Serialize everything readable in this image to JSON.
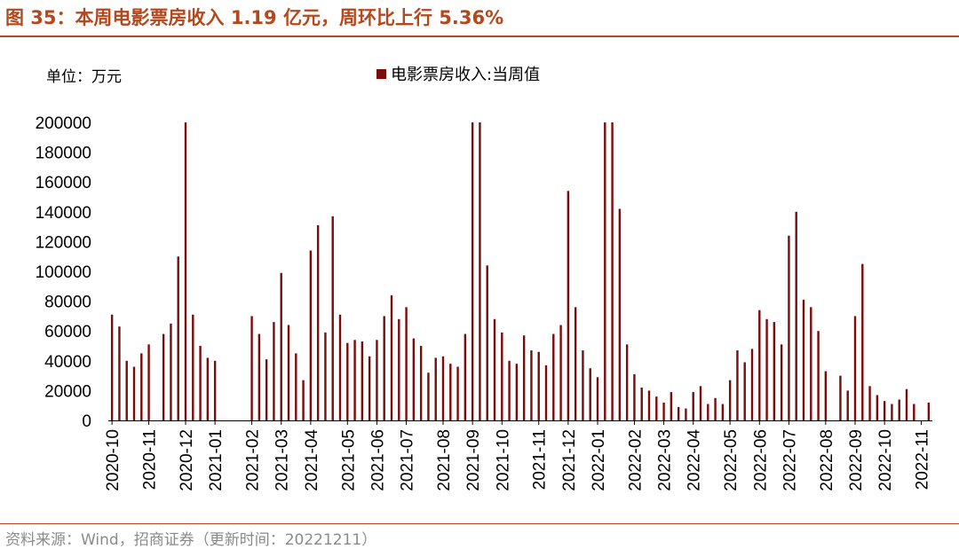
{
  "header": {
    "title": "图 35：本周电影票房收入 1.19 亿元，周环比上行 5.36%"
  },
  "footer": {
    "source": "资料来源：Wind，招商证券（更新时间：20221211）"
  },
  "chart_data": {
    "type": "bar",
    "unit_label": "单位：万元",
    "series": [
      {
        "name": "电影票房收入:当周值",
        "color": "#7b0c0c",
        "values": [
          71000,
          63000,
          40000,
          36000,
          45000,
          51000,
          null,
          58000,
          65000,
          110000,
          200000,
          71000,
          50000,
          42000,
          40000,
          null,
          null,
          null,
          null,
          70000,
          58000,
          41000,
          66000,
          99000,
          64000,
          45000,
          27000,
          114000,
          131000,
          59000,
          137000,
          71000,
          52000,
          54000,
          53000,
          43000,
          54000,
          70000,
          84000,
          68000,
          76000,
          55000,
          50000,
          32000,
          42000,
          43000,
          38000,
          36000,
          58000,
          200000,
          200000,
          104000,
          68000,
          59000,
          40000,
          38000,
          57000,
          47000,
          46000,
          37000,
          58000,
          64000,
          154000,
          76000,
          47000,
          35000,
          29000,
          200000,
          200000,
          142000,
          51000,
          31000,
          22000,
          20000,
          16000,
          12000,
          19000,
          9000,
          8000,
          19000,
          23000,
          11000,
          15000,
          11000,
          27000,
          47000,
          39000,
          48000,
          74000,
          68000,
          66000,
          51000,
          124000,
          140000,
          81000,
          76000,
          60000,
          33000,
          null,
          30000,
          20000,
          70000,
          105000,
          23000,
          17000,
          13000,
          11000,
          14000,
          21000,
          11000,
          null,
          12000
        ]
      }
    ],
    "x_tick_labels": [
      "2020-10",
      "2020-11",
      "2020-12",
      "2021-01",
      "2021-02",
      "2021-03",
      "2021-04",
      "2021-05",
      "2021-06",
      "2021-07",
      "2021-08",
      "2021-09",
      "2021-10",
      "2021-11",
      "2021-12",
      "2022-01",
      "2022-02",
      "2022-03",
      "2022-04",
      "2022-05",
      "2022-06",
      "2022-07",
      "2022-08",
      "2022-09",
      "2022-10",
      "2022-11"
    ],
    "x_tick_week_index": [
      0,
      5,
      10,
      14,
      19,
      23,
      27,
      32,
      36,
      40,
      45,
      49,
      53,
      58,
      62,
      66,
      71,
      75,
      79,
      84,
      88,
      92,
      97,
      101,
      105,
      110
    ],
    "y_tick_labels": [
      "0",
      "20000",
      "40000",
      "60000",
      "80000",
      "100000",
      "120000",
      "140000",
      "160000",
      "180000",
      "200000"
    ],
    "ylim": [
      0,
      200000
    ],
    "grid": false,
    "legend_position": "top-center"
  }
}
